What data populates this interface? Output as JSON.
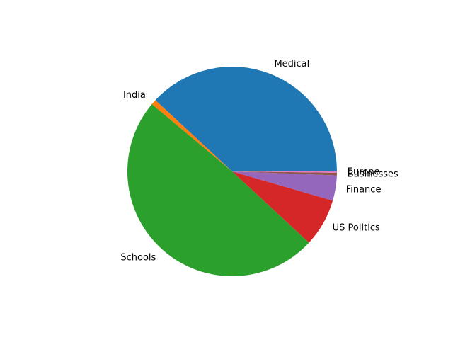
{
  "chart_data": {
    "type": "pie",
    "title": "",
    "start_angle_deg": 0,
    "direction": "counterclockwise",
    "slices": [
      {
        "label": "Medical",
        "value": 38.1,
        "color": "#1f77b4"
      },
      {
        "label": "India",
        "value": 0.8,
        "color": "#ff7f0e"
      },
      {
        "label": "Schools",
        "value": 49.2,
        "color": "#2ca02c"
      },
      {
        "label": "US Politics",
        "value": 7.4,
        "color": "#d62728"
      },
      {
        "label": "Finance",
        "value": 3.9,
        "color": "#9467bd"
      },
      {
        "label": "Businesses",
        "value": 0.4,
        "color": "#8c564b"
      },
      {
        "label": "Europe",
        "value": 0.2,
        "color": "#e377c2"
      }
    ]
  }
}
